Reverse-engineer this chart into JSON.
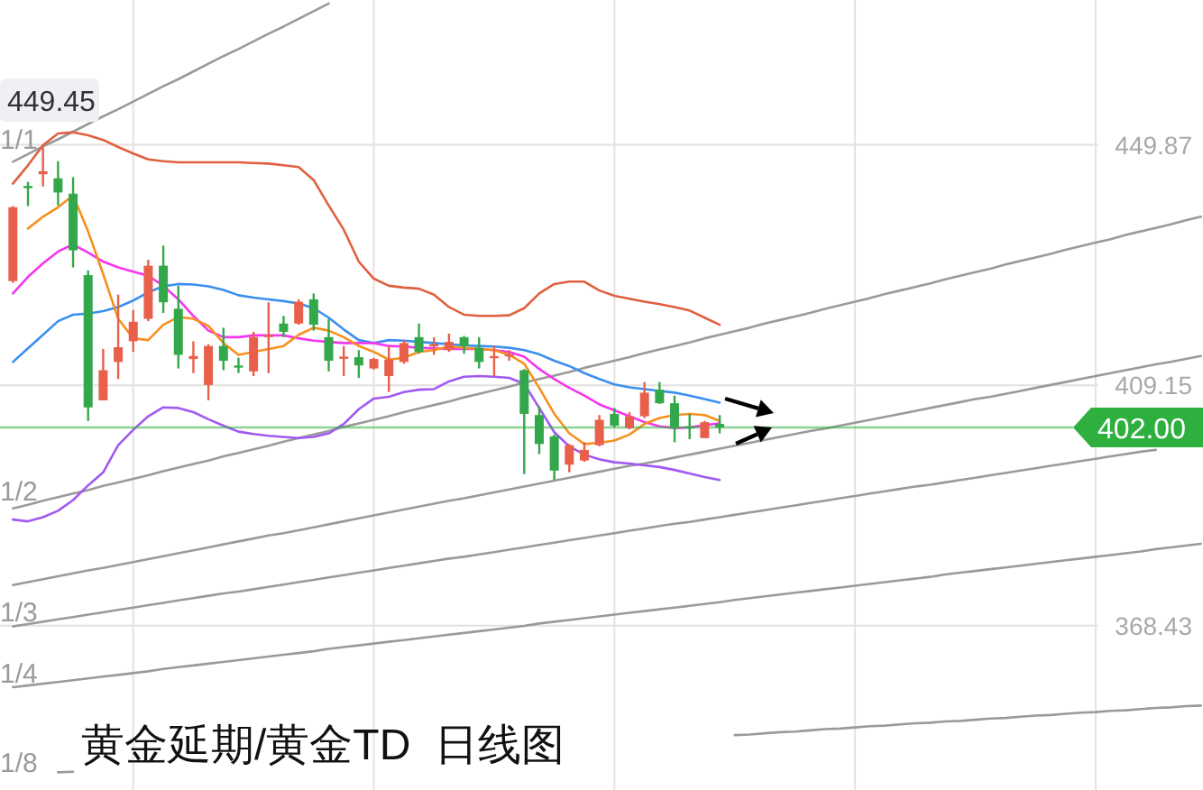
{
  "chart_data": {
    "type": "candlestick",
    "title": "黄金延期/黄金TD  日线图",
    "categories": [
      null,
      null,
      null,
      null,
      null,
      null,
      null,
      null,
      null,
      null,
      null,
      null,
      null,
      null,
      null,
      null,
      null,
      null,
      null,
      null,
      null,
      null,
      null,
      null,
      null,
      null,
      null,
      null,
      null,
      null,
      null,
      null,
      null,
      null,
      null,
      null,
      null,
      null,
      null,
      null,
      null,
      null,
      null,
      null,
      null,
      null,
      null,
      null,
      null,
      null,
      null,
      null,
      null,
      null,
      null,
      null,
      null,
      null,
      null,
      null,
      null,
      null,
      null,
      null,
      null,
      null,
      null,
      null,
      null,
      null,
      null,
      null,
      null,
      null,
      null,
      null,
      null,
      null,
      null,
      null
    ],
    "ohlc": [
      [
        426.8,
        439.5,
        426.5,
        439.3
      ],
      [
        442.9,
        443.6,
        439.5,
        442.7
      ],
      [
        444.9,
        449.45,
        442.8,
        445.4
      ],
      [
        444.2,
        447.1,
        439.6,
        441.8
      ],
      [
        441.6,
        444.4,
        429.1,
        432.0
      ],
      [
        427.8,
        428.6,
        403.1,
        405.4
      ],
      [
        406.6,
        415.3,
        406.6,
        411.7
      ],
      [
        413.1,
        424.5,
        410.2,
        415.6
      ],
      [
        416.6,
        421.9,
        414.8,
        419.9
      ],
      [
        420.4,
        430.4,
        420.0,
        429.4
      ],
      [
        429.4,
        432.8,
        421.4,
        423.2
      ],
      [
        422.1,
        426.0,
        412.0,
        414.3
      ],
      [
        413.6,
        416.6,
        411.2,
        414.1
      ],
      [
        409.2,
        416.1,
        406.6,
        415.8
      ],
      [
        415.8,
        418.9,
        411.7,
        413.3
      ],
      [
        412.5,
        413.8,
        411.2,
        412.3
      ],
      [
        411.5,
        418.2,
        410.7,
        417.3
      ],
      [
        417.3,
        423.2,
        411.2,
        417.7
      ],
      [
        419.6,
        420.9,
        417.3,
        418.2
      ],
      [
        419.6,
        423.7,
        419.4,
        423.3
      ],
      [
        423.7,
        424.7,
        418.4,
        419.4
      ],
      [
        417.3,
        420.4,
        411.5,
        413.3
      ],
      [
        413.8,
        415.8,
        410.7,
        414.0
      ],
      [
        413.9,
        415.1,
        410.4,
        412.5
      ],
      [
        412.0,
        413.8,
        411.8,
        413.6
      ],
      [
        410.7,
        415.8,
        408.0,
        413.5
      ],
      [
        413.1,
        416.8,
        412.8,
        416.3
      ],
      [
        417.3,
        419.6,
        414.5,
        414.8
      ],
      [
        415.9,
        417.3,
        414.3,
        416.1
      ],
      [
        415.1,
        417.9,
        414.8,
        416.5
      ],
      [
        417.3,
        417.5,
        414.5,
        415.8
      ],
      [
        415.5,
        417.3,
        412.0,
        413.1
      ],
      [
        413.9,
        415.8,
        410.7,
        414.1
      ],
      [
        414.2,
        415.1,
        413.3,
        414.4
      ],
      [
        411.7,
        411.9,
        394.1,
        404.3
      ],
      [
        404.1,
        405.6,
        397.5,
        399.2
      ],
      [
        400.5,
        400.8,
        393.1,
        394.7
      ],
      [
        395.7,
        399.2,
        394.4,
        399.0
      ],
      [
        396.4,
        399.5,
        396.2,
        398.2
      ],
      [
        399.0,
        404.1,
        398.8,
        403.3
      ],
      [
        404.3,
        405.3,
        402.0,
        402.3
      ],
      [
        401.9,
        404.6,
        401.7,
        403.9
      ],
      [
        403.9,
        409.7,
        403.6,
        407.9
      ],
      [
        408.4,
        409.7,
        406.0,
        406.1
      ],
      [
        406.1,
        407.4,
        399.5,
        401.9
      ],
      [
        402.2,
        404.3,
        400.0,
        402.0
      ],
      [
        400.2,
        403.1,
        400.2,
        402.9
      ],
      [
        402.6,
        404.1,
        401.0,
        402.0
      ],
      null,
      null,
      null,
      null,
      null,
      null,
      null,
      null,
      null,
      null,
      null,
      null,
      null,
      null,
      null,
      null,
      null,
      null,
      null,
      null,
      null,
      null,
      null,
      null,
      null,
      null,
      null,
      null,
      null,
      null,
      null,
      null
    ],
    "colors": [
      "#e8604c",
      "#33a84a",
      "#e8604c",
      "#33a84a",
      "#33a84a",
      "#33a84a",
      "#e8604c",
      "#e8604c",
      "#e8604c",
      "#e8604c",
      "#33a84a",
      "#33a84a",
      "#e8604c",
      "#e8604c",
      "#33a84a",
      "#33a84a",
      "#e8604c",
      "#e8604c",
      "#33a84a",
      "#e8604c",
      "#33a84a",
      "#33a84a",
      "#e8604c",
      "#33a84a",
      "#e8604c",
      "#e8604c",
      "#e8604c",
      "#33a84a",
      "#e8604c",
      "#e8604c",
      "#33a84a",
      "#33a84a",
      "#e8604c",
      "#e8604c",
      "#33a84a",
      "#33a84a",
      "#33a84a",
      "#e8604c",
      "#e8604c",
      "#e8604c",
      "#33a84a",
      "#e8604c",
      "#e8604c",
      "#33a84a",
      "#33a84a",
      "#33a84a",
      "#e8604c",
      "#33a84a",
      null,
      null,
      null,
      null,
      null,
      null,
      null,
      null,
      null,
      null,
      null,
      null,
      null,
      null,
      null,
      null,
      null,
      null,
      null,
      null,
      null,
      null,
      null,
      null,
      null,
      null,
      null,
      null,
      null,
      null,
      null,
      null
    ],
    "series": [
      {
        "type": "line",
        "name": "1/1",
        "color": "#9a9a9a",
        "values": [
          447.0,
          448.3,
          449.6,
          450.8,
          452.1,
          453.4,
          454.7,
          455.9,
          457.2,
          458.5,
          459.8,
          461.0,
          462.3,
          463.6,
          464.9,
          466.1,
          467.4,
          468.7,
          469.9,
          471.2,
          472.5,
          473.8,
          null,
          null,
          null,
          null,
          null,
          null,
          null,
          null,
          null,
          null,
          null,
          null,
          null,
          null,
          null,
          null,
          null,
          null,
          null,
          null,
          null,
          null,
          null,
          null,
          null,
          null,
          null,
          null,
          null,
          null,
          null,
          null,
          null,
          null,
          null,
          null,
          null,
          null,
          null,
          null,
          null,
          null,
          null,
          null,
          null,
          null,
          null,
          null,
          null,
          null,
          null,
          null,
          null,
          null,
          null,
          null,
          null,
          null
        ]
      },
      {
        "type": "line",
        "name": "1/2",
        "color": "#9a9a9a",
        "values": [
          388.3,
          388.9,
          389.6,
          390.2,
          390.8,
          391.4,
          392.1,
          392.7,
          393.3,
          393.9,
          394.6,
          395.2,
          395.8,
          396.4,
          397.1,
          397.7,
          398.3,
          398.9,
          399.6,
          400.2,
          400.8,
          401.4,
          402.1,
          402.7,
          403.3,
          403.9,
          404.6,
          405.2,
          405.8,
          406.4,
          407.1,
          407.7,
          408.3,
          408.9,
          409.6,
          410.2,
          410.8,
          411.4,
          412.1,
          412.7,
          413.3,
          413.9,
          414.6,
          415.2,
          415.8,
          416.4,
          417.1,
          417.7,
          418.3,
          418.9,
          419.6,
          420.2,
          420.8,
          421.4,
          422.1,
          422.7,
          423.3,
          423.9,
          424.6,
          425.2,
          425.8,
          426.4,
          427.1,
          427.7,
          428.3,
          428.9,
          429.6,
          430.2,
          430.8,
          431.4,
          432.1,
          432.7,
          433.3,
          433.9,
          434.6,
          435.2,
          435.8,
          436.4,
          437.1,
          437.7
        ]
      },
      {
        "type": "line",
        "color": "#9a9a9a",
        "values": [
          375.3,
          375.8,
          376.3,
          376.8,
          377.3,
          377.8,
          378.2,
          378.7,
          379.2,
          379.7,
          380.2,
          380.7,
          381.2,
          381.7,
          382.2,
          382.7,
          383.2,
          383.7,
          384.1,
          384.6,
          385.1,
          385.6,
          386.1,
          386.6,
          387.1,
          387.6,
          388.1,
          388.6,
          389.1,
          389.6,
          390.0,
          390.5,
          391.0,
          391.5,
          392.0,
          392.5,
          393.0,
          393.5,
          394.0,
          394.5,
          395.0,
          395.5,
          395.9,
          396.4,
          396.9,
          397.4,
          397.9,
          398.4,
          398.9,
          399.4,
          399.9,
          400.4,
          400.9,
          401.4,
          401.8,
          402.3,
          402.8,
          403.3,
          403.8,
          404.3,
          404.8,
          405.3,
          405.8,
          406.3,
          406.8,
          407.2,
          407.7,
          408.2,
          408.7,
          409.2,
          409.7,
          410.2,
          410.7,
          411.2,
          411.7,
          412.2,
          412.7,
          413.1,
          413.6,
          414.1
        ]
      },
      {
        "type": "line",
        "name": "1/3",
        "color": "#9a9a9a",
        "values": [
          368.3,
          368.7,
          369.1,
          369.5,
          369.9,
          370.3,
          370.7,
          371.1,
          371.5,
          371.9,
          372.3,
          372.7,
          373.1,
          373.5,
          373.9,
          374.2,
          374.6,
          375.0,
          375.4,
          375.8,
          376.2,
          376.6,
          377.0,
          377.4,
          377.8,
          378.2,
          378.6,
          379.0,
          379.4,
          379.8,
          380.1,
          380.5,
          380.9,
          381.3,
          381.7,
          382.1,
          382.5,
          382.9,
          383.3,
          383.7,
          384.1,
          384.5,
          384.9,
          385.3,
          385.7,
          386.0,
          386.4,
          386.8,
          387.2,
          387.6,
          388.0,
          388.4,
          388.8,
          389.2,
          389.6,
          390.0,
          390.4,
          390.8,
          391.2,
          391.6,
          392.0,
          392.3,
          392.7,
          393.1,
          393.5,
          393.9,
          394.3,
          394.7,
          395.1,
          395.5,
          395.9,
          396.3,
          396.7,
          397.1,
          397.5,
          397.9,
          398.2,
          null,
          null,
          null
        ]
      },
      {
        "type": "line",
        "name": "1/4",
        "color": "#9a9a9a",
        "values": [
          358.0,
          358.3,
          358.6,
          358.9,
          359.2,
          359.5,
          359.8,
          360.1,
          360.4,
          360.7,
          361.1,
          361.4,
          361.7,
          362.0,
          362.3,
          362.6,
          362.9,
          363.2,
          363.5,
          363.8,
          364.1,
          364.5,
          364.8,
          365.1,
          365.4,
          365.7,
          366.0,
          366.3,
          366.6,
          366.9,
          367.2,
          367.5,
          367.8,
          368.1,
          368.4,
          368.8,
          369.1,
          369.4,
          369.7,
          370.0,
          370.3,
          370.6,
          370.9,
          371.2,
          371.5,
          371.8,
          372.1,
          372.4,
          372.8,
          373.1,
          373.4,
          373.7,
          374.0,
          374.3,
          374.6,
          374.9,
          375.2,
          375.5,
          375.8,
          376.1,
          376.4,
          376.7,
          377.1,
          377.4,
          377.7,
          378.0,
          378.3,
          378.6,
          378.9,
          379.2,
          379.5,
          379.8,
          380.1,
          380.4,
          380.7,
          381.0,
          381.4,
          381.7,
          382.0,
          382.3
        ]
      },
      {
        "type": "line",
        "name": "1/8",
        "color": "#9a9a9a",
        "values": [
          null,
          null,
          null,
          343.6,
          343.7,
          null,
          null,
          null,
          null,
          null,
          null,
          null,
          null,
          null,
          null,
          null,
          null,
          null,
          null,
          null,
          null,
          null,
          null,
          null,
          null,
          null,
          null,
          null,
          null,
          null,
          null,
          null,
          null,
          null,
          null,
          null,
          null,
          null,
          null,
          null,
          null,
          null,
          null,
          null,
          null,
          null,
          null,
          null,
          349.9,
          350.0,
          350.2,
          350.4,
          350.5,
          350.7,
          350.9,
          351.0,
          351.2,
          351.4,
          351.5,
          351.7,
          351.9,
          352.0,
          352.2,
          352.3,
          352.5,
          352.7,
          352.8,
          353.0,
          353.2,
          353.3,
          353.5,
          353.7,
          353.8,
          354.0,
          354.1,
          354.3,
          354.5,
          354.6,
          354.8,
          354.9
        ]
      },
      {
        "type": "line",
        "color": "#e0603f",
        "values": [
          443.3,
          446.4,
          449.8,
          451.8,
          452.0,
          451.5,
          450.7,
          449.5,
          448.4,
          447.4,
          447.1,
          446.9,
          446.9,
          446.9,
          446.9,
          446.9,
          446.8,
          446.7,
          446.4,
          446.1,
          443.9,
          439.6,
          435.5,
          430.1,
          427.2,
          426.0,
          425.7,
          425.5,
          424.5,
          422.4,
          421.1,
          420.9,
          420.9,
          421.0,
          422.2,
          424.7,
          426.3,
          426.7,
          426.7,
          425.2,
          424.3,
          423.8,
          423.3,
          422.9,
          422.4,
          421.8,
          420.6,
          419.4,
          null,
          null,
          null,
          null,
          null,
          null,
          null,
          null,
          null,
          null,
          null,
          null,
          null,
          null,
          null,
          null,
          null,
          null,
          null,
          null,
          null,
          null,
          null,
          null,
          null,
          null,
          null,
          null,
          null,
          null,
          null,
          null
        ]
      },
      {
        "type": "line",
        "color": "#a259f0",
        "values": [
          386.4,
          386.1,
          386.8,
          387.9,
          389.7,
          392.2,
          394.4,
          399.0,
          401.6,
          403.9,
          405.4,
          405.3,
          404.6,
          403.4,
          402.3,
          401.3,
          400.9,
          400.6,
          400.4,
          400.2,
          400.4,
          401.0,
          402.6,
          405.1,
          406.9,
          407.2,
          408.0,
          408.4,
          408.5,
          409.8,
          410.6,
          410.7,
          410.6,
          410.4,
          409.4,
          405.3,
          401.2,
          398.8,
          397.4,
          396.6,
          396.1,
          395.9,
          395.6,
          395.3,
          394.8,
          394.2,
          393.6,
          393.1,
          null,
          null,
          null,
          null,
          null,
          null,
          null,
          null,
          null,
          null,
          null,
          null,
          null,
          null,
          null,
          null,
          null,
          null,
          null,
          null,
          null,
          null,
          null,
          null,
          null,
          null,
          null,
          null,
          null,
          null,
          null,
          null
        ]
      },
      {
        "type": "line",
        "color": "#3b8ff0",
        "values": [
          413.1,
          415.4,
          417.7,
          420.0,
          421.1,
          421.3,
          421.7,
          422.4,
          423.5,
          424.9,
          425.9,
          426.3,
          426.2,
          425.9,
          425.3,
          424.4,
          424.0,
          423.7,
          423.4,
          423.0,
          422.2,
          420.6,
          418.6,
          416.8,
          416.3,
          416.8,
          416.7,
          416.5,
          416.3,
          416.1,
          415.9,
          415.8,
          415.7,
          415.5,
          415.1,
          414.4,
          413.3,
          412.4,
          411.2,
          410.2,
          409.3,
          408.8,
          408.5,
          408.2,
          407.9,
          407.4,
          406.8,
          406.2,
          null,
          null,
          null,
          null,
          null,
          null,
          null,
          null,
          null,
          null,
          null,
          null,
          null,
          null,
          null,
          null,
          null,
          null,
          null,
          null,
          null,
          null,
          null,
          null,
          null,
          null,
          null,
          null,
          null,
          null,
          null,
          null
        ]
      },
      {
        "type": "line",
        "color": "#f535f0",
        "values": [
          424.7,
          427.5,
          429.8,
          431.8,
          433.0,
          431.6,
          430.1,
          429.1,
          428.4,
          427.7,
          426.0,
          423.7,
          420.9,
          418.4,
          417.3,
          417.3,
          417.6,
          417.6,
          417.6,
          417.1,
          416.7,
          416.5,
          416.3,
          416.3,
          416.3,
          415.8,
          415.7,
          415.5,
          415.4,
          415.3,
          415.3,
          415.3,
          415.1,
          414.8,
          414.0,
          411.9,
          410.2,
          408.7,
          407.4,
          405.9,
          404.9,
          403.9,
          402.9,
          402.2,
          401.9,
          402.0,
          402.4,
          402.7,
          null,
          null,
          null,
          null,
          null,
          null,
          null,
          null,
          null,
          null,
          null,
          null,
          null,
          null,
          null,
          null,
          null,
          null,
          null,
          null,
          null,
          null,
          null,
          null,
          null,
          null,
          null,
          null,
          null,
          null,
          null,
          null
        ]
      },
      {
        "type": "line",
        "color": "#f7901e",
        "values": [
          null,
          435.7,
          437.7,
          439.3,
          441.3,
          435.2,
          428.0,
          420.4,
          417.1,
          416.8,
          419.4,
          420.7,
          420.4,
          419.2,
          416.3,
          414.3,
          414.8,
          415.3,
          415.8,
          417.7,
          418.9,
          418.4,
          417.3,
          415.8,
          414.8,
          413.5,
          413.8,
          414.8,
          415.1,
          415.7,
          415.5,
          415.3,
          415.1,
          414.3,
          412.8,
          408.7,
          404.3,
          401.0,
          399.2,
          399.4,
          399.8,
          400.8,
          402.6,
          403.6,
          404.1,
          404.3,
          404.1,
          403.1,
          null,
          null,
          null,
          null,
          null,
          null,
          null,
          null,
          null,
          null,
          null,
          null,
          null,
          null,
          null,
          null,
          null,
          null,
          null,
          null,
          null,
          null,
          null,
          null,
          null,
          null,
          null,
          null,
          null,
          null,
          null,
          null
        ]
      }
    ],
    "ylim": [
      340.6,
      474.4
    ],
    "yticks": [
      449.87,
      409.15,
      368.43
    ],
    "tick_labels": "y",
    "grid": true,
    "ref_lines": [
      {
        "axis": "y",
        "value": 402.0,
        "label": "402.00",
        "color": "#2eb03f"
      }
    ],
    "annotations": [
      {
        "text": "449.45",
        "y": 449.45
      }
    ]
  }
}
